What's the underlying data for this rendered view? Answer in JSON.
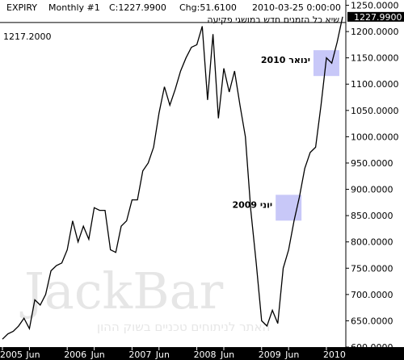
{
  "header": {
    "symbol": "EXPIRY",
    "period": "Monthly #1",
    "close": "C:1227.9900",
    "change": "Chg:51.6100",
    "datetime": "2010-03-25  0:00:00",
    "subtitle": "שיא כל הזמנים חדש במושגי פקיעה",
    "level_label": "1217.2000",
    "last_price_label": "1227.9900"
  },
  "watermark": {
    "logo": "JackBar",
    "tagline": "האתר לניתוחים טכניים בשוק ההון"
  },
  "colors": {
    "line": "#000000",
    "highlight": "#c8c8f8",
    "axis_bar": "#000000",
    "last_price_bg": "#000000"
  },
  "chart_data": {
    "type": "line",
    "ylim": [
      600,
      1260
    ],
    "yticks": [
      "1250.0000",
      "1200.0000",
      "1150.0000",
      "1100.0000",
      "1050.0000",
      "1000.0000",
      "950.0000",
      "900.0000",
      "850.0000",
      "800.0000",
      "750.0000",
      "700.0000",
      "650.0000",
      "600.0000"
    ],
    "xticks": [
      "2005",
      "Jun",
      "2006",
      "Jun",
      "2007",
      "Jun",
      "2008",
      "Jun",
      "2009",
      "Jun",
      "2010"
    ],
    "xtick_idx": [
      0,
      5,
      12,
      17,
      24,
      29,
      36,
      41,
      48,
      53,
      60
    ],
    "reference_level": 1217.2,
    "series": [
      {
        "values": [
          615,
          625,
          630,
          640,
          655,
          635,
          690,
          680,
          700,
          745,
          755,
          760,
          785,
          840,
          800,
          830,
          805,
          865,
          860,
          860,
          785,
          780,
          830,
          840,
          880,
          880,
          935,
          950,
          980,
          1045,
          1095,
          1060,
          1090,
          1125,
          1150,
          1170,
          1175,
          1210,
          1070,
          1195,
          1035,
          1130,
          1085,
          1125,
          1060,
          1000,
          860,
          760,
          650,
          640,
          670,
          645,
          750,
          785,
          840,
          885,
          940,
          970,
          980,
          1060,
          1150,
          1140,
          1180,
          1228
        ],
        "annotations": [
          {
            "label": "יוני 2009",
            "index": 53,
            "value": 865
          },
          {
            "label": "ינואר 2010",
            "index": 60,
            "value": 1140
          }
        ]
      }
    ]
  }
}
